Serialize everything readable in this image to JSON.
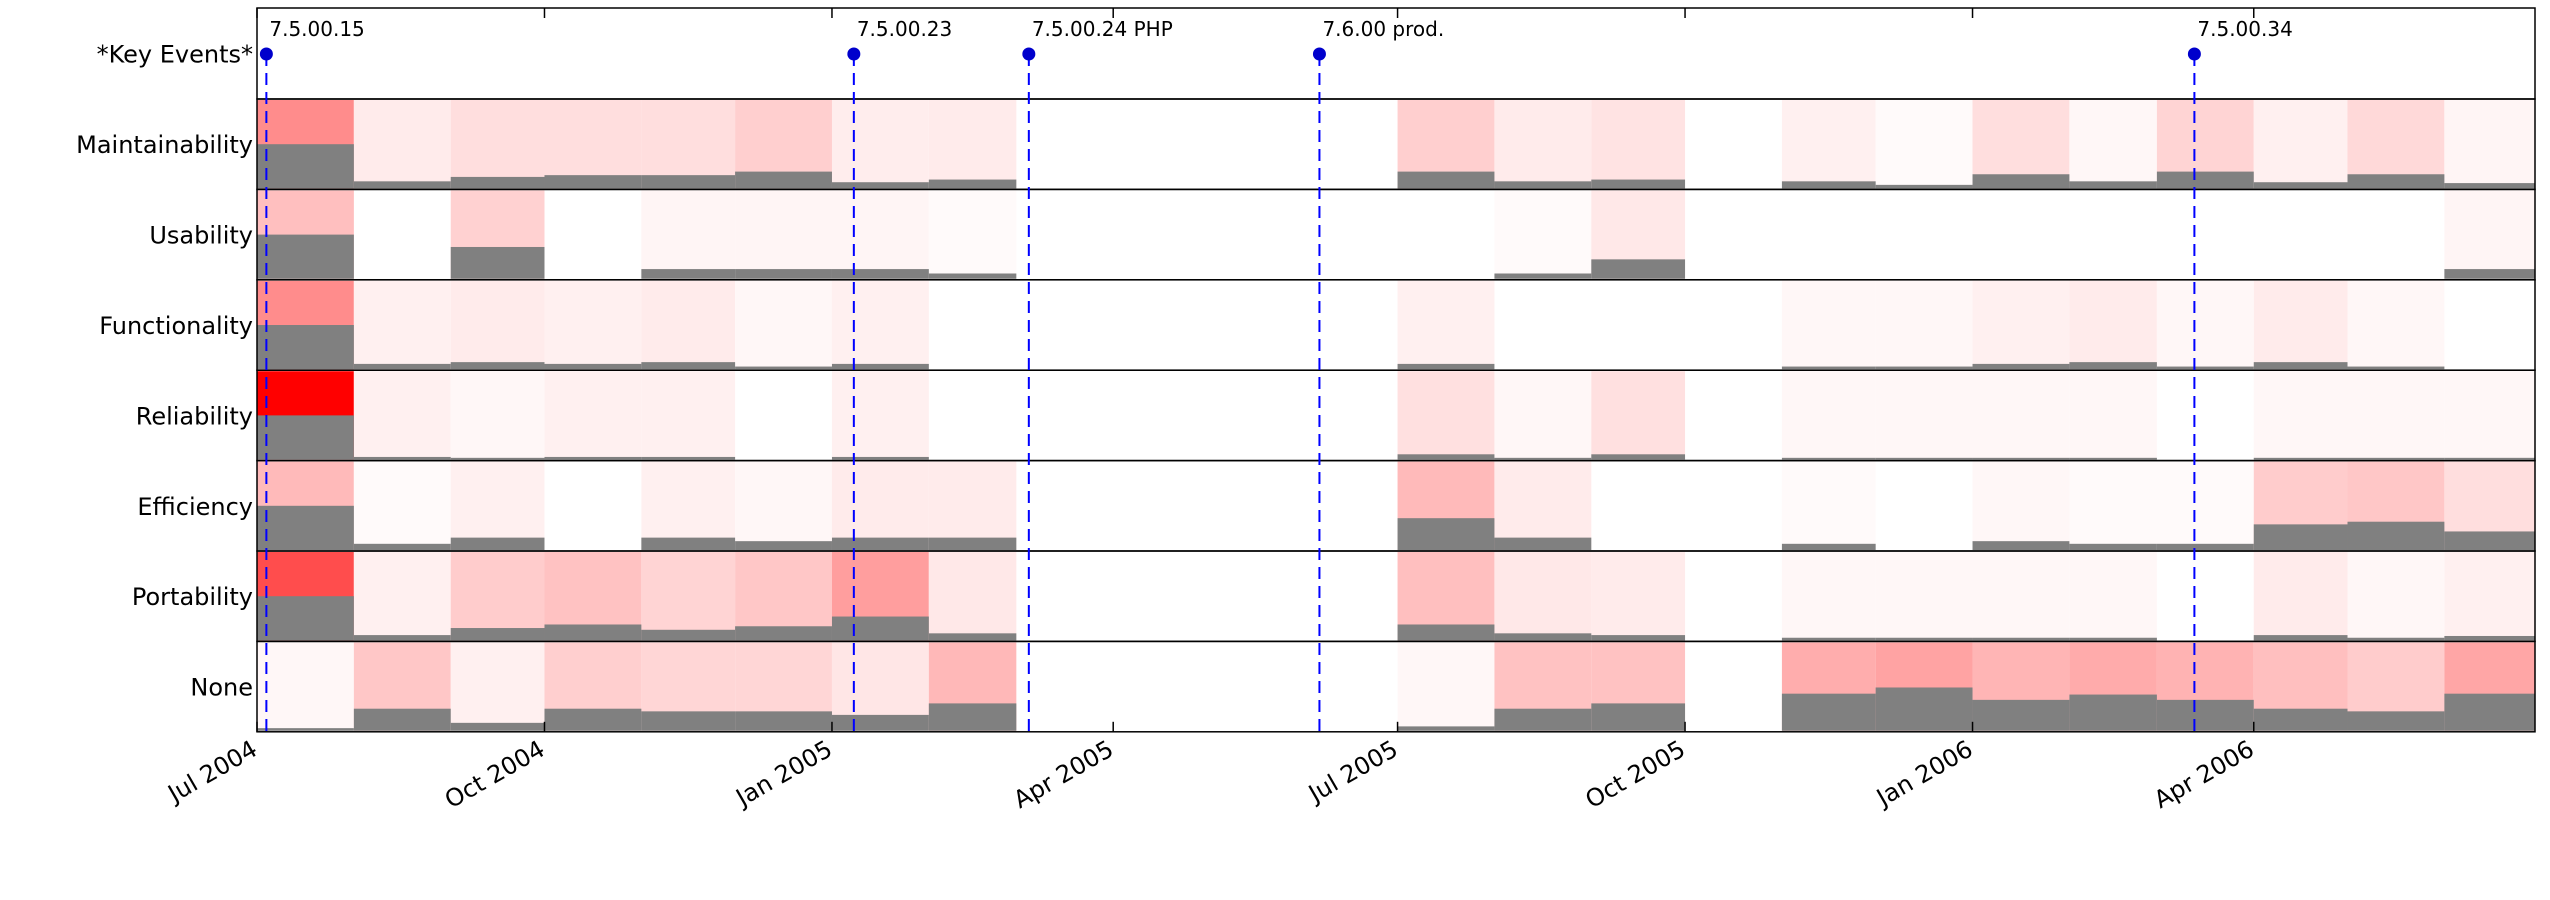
{
  "chart_data": {
    "type": "heatmap",
    "x_start": "2004-07-01",
    "x_end": "2006-06-30",
    "bin_start_dates": [
      "2004-07-01",
      "2004-08-01",
      "2004-09-01",
      "2004-10-01",
      "2004-11-01",
      "2004-12-01",
      "2005-01-01",
      "2005-02-01",
      "2005-03-01",
      "2005-04-01",
      "2005-05-01",
      "2005-06-01",
      "2005-07-01",
      "2005-08-01",
      "2005-09-01",
      "2005-10-01",
      "2005-11-01",
      "2005-12-01",
      "2006-01-01",
      "2006-02-01",
      "2006-03-01",
      "2006-04-01",
      "2006-05-01",
      "2006-06-01"
    ],
    "x_ticks": [
      {
        "date": "2004-07-01",
        "label": "Jul 2004"
      },
      {
        "date": "2004-10-01",
        "label": "Oct 2004"
      },
      {
        "date": "2005-01-01",
        "label": "Jan 2005"
      },
      {
        "date": "2005-04-01",
        "label": "Apr 2005"
      },
      {
        "date": "2005-07-01",
        "label": "Jul 2005"
      },
      {
        "date": "2005-10-01",
        "label": "Oct 2005"
      },
      {
        "date": "2006-01-01",
        "label": "Jan 2006"
      },
      {
        "date": "2006-04-01",
        "label": "Apr 2006"
      }
    ],
    "event_row_label": "*Key Events*",
    "events": [
      {
        "label": "7.5.00.15",
        "date": "2004-07-04"
      },
      {
        "label": "7.5.00.23",
        "date": "2005-01-08"
      },
      {
        "label": "7.5.00.24 PHP",
        "date": "2005-03-05"
      },
      {
        "label": "7.6.00 prod.",
        "date": "2005-06-06"
      },
      {
        "label": "7.5.00.34",
        "date": "2006-03-13"
      }
    ],
    "rows": [
      {
        "label": "Maintainability",
        "intensity": [
          0.45,
          0.08,
          0.13,
          0.13,
          0.13,
          0.19,
          0.07,
          0.08,
          0,
          0,
          0,
          0,
          0.19,
          0.08,
          0.11,
          0,
          0.06,
          0.02,
          0.13,
          0.03,
          0.17,
          0.06,
          0.15,
          0.04
        ],
        "bar": [
          0.5,
          0.08,
          0.13,
          0.15,
          0.15,
          0.19,
          0.07,
          0.1,
          0,
          0,
          0,
          0,
          0.19,
          0.08,
          0.1,
          0,
          0.08,
          0.04,
          0.16,
          0.08,
          0.19,
          0.07,
          0.16,
          0.06
        ]
      },
      {
        "label": "Usability",
        "intensity": [
          0.25,
          0,
          0.18,
          0,
          0.04,
          0.04,
          0.04,
          0.02,
          0,
          0,
          0,
          0,
          0,
          0.02,
          0.09,
          0,
          0,
          0,
          0,
          0,
          0,
          0,
          0,
          0.04
        ],
        "bar": [
          0.5,
          0,
          0.36,
          0,
          0.11,
          0.11,
          0.11,
          0.06,
          0,
          0,
          0,
          0,
          0,
          0.06,
          0.22,
          0,
          0,
          0,
          0,
          0,
          0,
          0,
          0,
          0.11
        ]
      },
      {
        "label": "Functionality",
        "intensity": [
          0.45,
          0.06,
          0.08,
          0.06,
          0.08,
          0.03,
          0.06,
          0,
          0,
          0,
          0,
          0,
          0.06,
          0,
          0,
          0,
          0.03,
          0.03,
          0.06,
          0.08,
          0.03,
          0.08,
          0.03,
          0
        ],
        "bar": [
          0.5,
          0.06,
          0.08,
          0.06,
          0.08,
          0.03,
          0.06,
          0,
          0,
          0,
          0,
          0,
          0.06,
          0,
          0,
          0,
          0.03,
          0.03,
          0.06,
          0.08,
          0.03,
          0.08,
          0.03,
          0
        ]
      },
      {
        "label": "Reliability",
        "intensity": [
          1,
          0.06,
          0.03,
          0.06,
          0.06,
          0,
          0.06,
          0,
          0,
          0,
          0,
          0,
          0.12,
          0.03,
          0.12,
          0,
          0.03,
          0.03,
          0.03,
          0.03,
          0,
          0.03,
          0.03,
          0.03
        ],
        "bar": [
          0.5,
          0.03,
          0.02,
          0.03,
          0.03,
          0,
          0.03,
          0,
          0,
          0,
          0,
          0,
          0.06,
          0.02,
          0.06,
          0,
          0.02,
          0.02,
          0.02,
          0.02,
          0,
          0.02,
          0.02,
          0.02
        ]
      },
      {
        "label": "Efficiency",
        "intensity": [
          0.27,
          0.02,
          0.06,
          0,
          0.06,
          0.03,
          0.08,
          0.08,
          0,
          0,
          0,
          0,
          0.27,
          0.08,
          0,
          0,
          0.02,
          0,
          0.03,
          0.02,
          0.02,
          0.2,
          0.22,
          0.13
        ],
        "bar": [
          0.5,
          0.07,
          0.14,
          0,
          0.14,
          0.1,
          0.14,
          0.14,
          0,
          0,
          0,
          0,
          0.36,
          0.14,
          0,
          0,
          0.07,
          0,
          0.1,
          0.07,
          0.07,
          0.29,
          0.32,
          0.21
        ]
      },
      {
        "label": "Portability",
        "intensity": [
          0.7,
          0.06,
          0.2,
          0.24,
          0.17,
          0.22,
          0.38,
          0.09,
          0,
          0,
          0,
          0,
          0.25,
          0.09,
          0.08,
          0,
          0.03,
          0.03,
          0.03,
          0.03,
          0,
          0.08,
          0.03,
          0.06
        ],
        "bar": [
          0.5,
          0.06,
          0.14,
          0.18,
          0.12,
          0.16,
          0.27,
          0.08,
          0,
          0,
          0,
          0,
          0.18,
          0.08,
          0.06,
          0,
          0.03,
          0.03,
          0.03,
          0.03,
          0,
          0.06,
          0.03,
          0.05
        ]
      },
      {
        "label": "None",
        "intensity": [
          0.03,
          0.22,
          0.06,
          0.19,
          0.16,
          0.16,
          0.1,
          0.28,
          0,
          0,
          0,
          0,
          0.03,
          0.24,
          0.24,
          0,
          0.32,
          0.36,
          0.29,
          0.33,
          0.3,
          0.25,
          0.2,
          0.35
        ],
        "bar": [
          0.03,
          0.25,
          0.09,
          0.25,
          0.22,
          0.22,
          0.18,
          0.31,
          0,
          0,
          0,
          0,
          0.05,
          0.25,
          0.31,
          0,
          0.42,
          0.49,
          0.35,
          0.41,
          0.35,
          0.25,
          0.22,
          0.42
        ]
      }
    ],
    "colors": {
      "cell_base": "#ffffff",
      "cell_full": "#ff0000",
      "bar": "#808080",
      "event_line": "#0000ff",
      "event_marker": "#0000cc",
      "axes": "#000000"
    },
    "grid": false,
    "xlabel": "",
    "ylabel": ""
  }
}
